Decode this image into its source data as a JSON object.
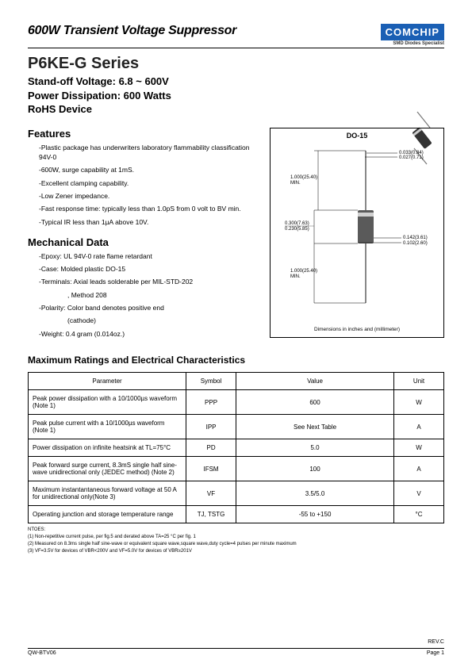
{
  "header": {
    "banner": "600W Transient Voltage Suppressor",
    "logo": "COMCHIP",
    "logo_sub": "SMD Diodes Specialist",
    "series": "P6KE-G Series",
    "line1": "Stand-off Voltage: 6.8 ~ 600V",
    "line2": "Power Dissipation: 600 Watts",
    "line3": "RoHS Device"
  },
  "features": {
    "title": "Features",
    "items": [
      "-Plastic package has underwriters laboratory flammability classification 94V-0",
      "-600W, surge capability at 1mS.",
      "-Excellent clamping capability.",
      "-Low Zener impedance.",
      "-Fast response time: typically less than 1.0pS from 0 volt to BV min.",
      "-Typical IR less than 1µA above 10V."
    ]
  },
  "mech": {
    "title": "Mechanical Data",
    "items": [
      "-Epoxy: UL 94V-0 rate flame retardant",
      "-Case: Molded plastic DO-15",
      "-Terminals: Axial leads solderable per MIL-STD-202",
      ", Method 208",
      "-Polarity: Color band denotes positive end",
      "(cathode)",
      "-Weight: 0.4 gram (0.014oz.)"
    ],
    "indent_indices": [
      3,
      5
    ]
  },
  "package": {
    "title": "DO-15",
    "caption": "Dimensions in inches and (millimeter)",
    "dims": {
      "lead_len": "1.000(25.40)\nMIN.",
      "lead_dia_top": "0.033(0.84)",
      "lead_dia_bot": "0.027(0.71)",
      "body_len_top": "0.300(7.63)",
      "body_len_bot": "0.230(5.85)",
      "body_dia_top": "0.142(3.61)",
      "body_dia_bot": "0.102(2.60)"
    },
    "colors": {
      "body": "#5a5a5a",
      "band": "#d0d0d0",
      "lead": "#888888",
      "line": "#000000"
    }
  },
  "ratings": {
    "title": "Maximum Ratings and Electrical Characteristics",
    "columns": [
      "Parameter",
      "Symbol",
      "Value",
      "Unit"
    ],
    "rows": [
      [
        "Peak power dissipation with a 10/1000µs waveform (Note 1)",
        "PPP",
        "600",
        "W"
      ],
      [
        "Peak pulse current  with a 10/1000µs waveform (Note 1)",
        "IPP",
        "See Next Table",
        "A"
      ],
      [
        "Power dissipation on infinite heatsink at TL=75°C",
        "PD",
        "5.0",
        "W"
      ],
      [
        "Peak forward surge current, 8.3mS single half sine-wave unidirectional only (JEDEC method) (Note 2)",
        "IFSM",
        "100",
        "A"
      ],
      [
        "Maximum instantantaneous forward voltage at 50 A for unidirectional only(Note 3)",
        "VF",
        "3.5/5.0",
        "V"
      ],
      [
        "Operating junction and storage temperature range",
        "TJ, TSTG",
        "-55 to +150",
        "°C"
      ]
    ]
  },
  "notes": {
    "head": "NTOES:",
    "lines": [
      "(1) Non-repetitive current pulse, per fig.5 and derated above TA=25 °C per fig. 1",
      "(2) Measured on 8.3ms single half sine-wave or equivalent square wave,square wave,duty cycle=4 pulses per minute maximum",
      "(3) VF=3.5V for devices of VBR<200V and VF=5.0V for devices of VBR≥201V"
    ]
  },
  "footer": {
    "rev": "REV.C",
    "left": "QW-BTV06",
    "right": "Page 1"
  }
}
